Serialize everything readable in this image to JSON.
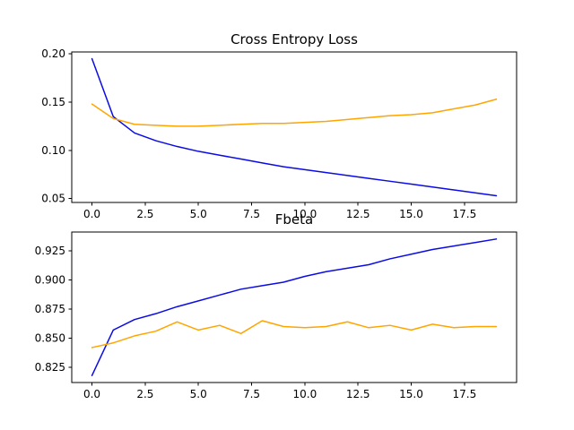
{
  "figure": {
    "background": "#ffffff",
    "axes_color": "#000000",
    "grid": false,
    "legend": "none"
  },
  "chart_data": [
    {
      "type": "line",
      "title": "Cross Entropy Loss",
      "xlabel": "",
      "ylabel": "",
      "x": [
        0,
        1,
        2,
        3,
        4,
        5,
        6,
        7,
        8,
        9,
        10,
        11,
        12,
        13,
        14,
        15,
        16,
        17,
        18,
        19
      ],
      "xlim": [
        -0.95,
        19.95
      ],
      "ylim": [
        0.046,
        0.202
      ],
      "xticks": [
        "0.0",
        "2.5",
        "5.0",
        "7.5",
        "10.0",
        "12.5",
        "15.0",
        "17.5"
      ],
      "yticks": [
        "0.05",
        "0.10",
        "0.15",
        "0.20"
      ],
      "series": [
        {
          "name": "blue",
          "color": "#0b0be6",
          "values": [
            0.195,
            0.135,
            0.118,
            0.11,
            0.104,
            0.099,
            0.095,
            0.091,
            0.087,
            0.083,
            0.08,
            0.077,
            0.074,
            0.071,
            0.068,
            0.065,
            0.062,
            0.059,
            0.056,
            0.053
          ]
        },
        {
          "name": "orange",
          "color": "#ffa500",
          "values": [
            0.148,
            0.133,
            0.127,
            0.126,
            0.125,
            0.125,
            0.126,
            0.127,
            0.128,
            0.128,
            0.129,
            0.13,
            0.132,
            0.134,
            0.136,
            0.137,
            0.139,
            0.143,
            0.147,
            0.153
          ]
        }
      ]
    },
    {
      "type": "line",
      "title": "Fbeta",
      "xlabel": "",
      "ylabel": "",
      "x": [
        0,
        1,
        2,
        3,
        4,
        5,
        6,
        7,
        8,
        9,
        10,
        11,
        12,
        13,
        14,
        15,
        16,
        17,
        18,
        19
      ],
      "xlim": [
        -0.95,
        19.95
      ],
      "ylim": [
        0.812,
        0.941
      ],
      "xticks": [
        "0.0",
        "2.5",
        "5.0",
        "7.5",
        "10.0",
        "12.5",
        "15.0",
        "17.5"
      ],
      "yticks": [
        "0.825",
        "0.850",
        "0.875",
        "0.900",
        "0.925"
      ],
      "series": [
        {
          "name": "blue",
          "color": "#0b0be6",
          "values": [
            0.818,
            0.857,
            0.866,
            0.871,
            0.877,
            0.882,
            0.887,
            0.892,
            0.895,
            0.898,
            0.903,
            0.907,
            0.91,
            0.913,
            0.918,
            0.922,
            0.926,
            0.929,
            0.932,
            0.935
          ]
        },
        {
          "name": "orange",
          "color": "#ffa500",
          "values": [
            0.842,
            0.846,
            0.852,
            0.856,
            0.864,
            0.857,
            0.861,
            0.854,
            0.865,
            0.86,
            0.859,
            0.86,
            0.864,
            0.859,
            0.861,
            0.857,
            0.862,
            0.859,
            0.86,
            0.86
          ]
        }
      ]
    }
  ]
}
